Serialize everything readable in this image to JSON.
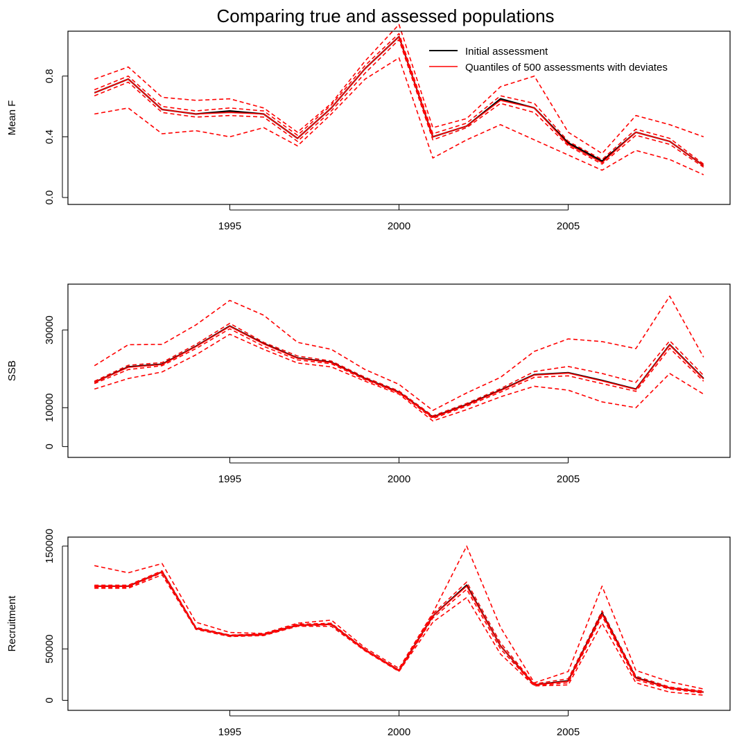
{
  "title": "Comparing true and assessed populations",
  "colors": {
    "assessment": "#000000",
    "quantiles": "#ff0000"
  },
  "legend": {
    "position": "top-right",
    "entries": [
      "Initial assessment",
      "Quantiles of 500 assessments with deviates"
    ]
  },
  "chart_data": [
    {
      "type": "line",
      "ylabel": "Mean F",
      "xlim": [
        1991,
        2009
      ],
      "ylim": [
        0,
        1.05
      ],
      "xticks": [
        "1995",
        "2000",
        "2005"
      ],
      "yticks": [
        "0.0",
        "0.4",
        "0.8"
      ],
      "x": [
        1991,
        1992,
        1993,
        1994,
        1995,
        1996,
        1997,
        1998,
        1999,
        2000,
        2001,
        2002,
        2003,
        2004,
        2005,
        2006,
        2007,
        2008,
        2009
      ],
      "series": [
        {
          "name": "Initial assessment",
          "style": "solid",
          "color": "#000000",
          "values": [
            0.69,
            0.78,
            0.58,
            0.55,
            0.57,
            0.55,
            0.39,
            0.59,
            0.85,
            1.06,
            0.4,
            0.47,
            0.65,
            0.59,
            0.36,
            0.24,
            0.43,
            0.37,
            0.21
          ]
        },
        {
          "style": "dashed",
          "color": "#ff0000",
          "values": [
            0.55,
            0.59,
            0.42,
            0.44,
            0.4,
            0.46,
            0.34,
            0.55,
            0.78,
            0.92,
            0.26,
            0.38,
            0.48,
            0.38,
            0.28,
            0.18,
            0.31,
            0.25,
            0.15
          ]
        },
        {
          "style": "dashed",
          "color": "#ff0000",
          "values": [
            0.67,
            0.76,
            0.56,
            0.53,
            0.54,
            0.53,
            0.37,
            0.57,
            0.82,
            1.04,
            0.38,
            0.46,
            0.62,
            0.56,
            0.34,
            0.22,
            0.41,
            0.35,
            0.2
          ]
        },
        {
          "style": "solid",
          "color": "#ff0000",
          "values": [
            0.69,
            0.78,
            0.58,
            0.55,
            0.56,
            0.55,
            0.39,
            0.59,
            0.85,
            1.06,
            0.4,
            0.47,
            0.64,
            0.59,
            0.35,
            0.23,
            0.43,
            0.37,
            0.21
          ]
        },
        {
          "style": "dashed",
          "color": "#ff0000",
          "values": [
            0.71,
            0.8,
            0.6,
            0.57,
            0.59,
            0.57,
            0.41,
            0.61,
            0.87,
            1.08,
            0.42,
            0.49,
            0.67,
            0.62,
            0.37,
            0.25,
            0.45,
            0.39,
            0.22
          ]
        },
        {
          "style": "dashed",
          "color": "#ff0000",
          "values": [
            0.78,
            0.86,
            0.66,
            0.64,
            0.65,
            0.59,
            0.43,
            0.62,
            0.9,
            1.14,
            0.46,
            0.52,
            0.73,
            0.8,
            0.43,
            0.29,
            0.54,
            0.48,
            0.4
          ]
        }
      ]
    },
    {
      "type": "line",
      "ylabel": "SSB",
      "xlim": [
        1991,
        2009
      ],
      "ylim": [
        -1000,
        40000
      ],
      "xticks": [
        "1995",
        "2000",
        "2005"
      ],
      "yticks": [
        "0",
        "10000",
        "30000"
      ],
      "x": [
        1991,
        1992,
        1993,
        1994,
        1995,
        1996,
        1997,
        1998,
        1999,
        2000,
        2001,
        2002,
        2003,
        2004,
        2005,
        2006,
        2007,
        2008,
        2009
      ],
      "series": [
        {
          "name": "Initial assessment",
          "style": "solid",
          "color": "#000000",
          "values": [
            16500,
            20500,
            21200,
            25800,
            31000,
            26500,
            22800,
            21700,
            17500,
            14000,
            7600,
            10800,
            14500,
            18500,
            19000,
            17000,
            14800,
            26200,
            17500
          ]
        },
        {
          "style": "dashed",
          "color": "#ff0000",
          "values": [
            14800,
            17500,
            19200,
            23600,
            28900,
            25000,
            21500,
            20500,
            16800,
            13500,
            6600,
            9500,
            12800,
            15500,
            14500,
            11500,
            10000,
            18800,
            13500
          ]
        },
        {
          "style": "dashed",
          "color": "#ff0000",
          "values": [
            16200,
            19800,
            20800,
            25200,
            30300,
            25800,
            22300,
            21300,
            17200,
            13800,
            7200,
            10400,
            14000,
            17800,
            18200,
            16200,
            14200,
            25300,
            16800
          ]
        },
        {
          "style": "solid",
          "color": "#ff0000",
          "values": [
            16500,
            20400,
            21100,
            25700,
            30900,
            26400,
            22700,
            21600,
            17400,
            13900,
            7500,
            10700,
            14400,
            18400,
            18900,
            16900,
            14700,
            26100,
            17400
          ]
        },
        {
          "style": "dashed",
          "color": "#ff0000",
          "values": [
            16800,
            20900,
            21600,
            26300,
            31700,
            26800,
            23300,
            22000,
            17800,
            14300,
            7900,
            11100,
            14900,
            19300,
            20600,
            18800,
            16500,
            27200,
            18300
          ]
        },
        {
          "style": "dashed",
          "color": "#ff0000",
          "values": [
            20800,
            26200,
            26300,
            31300,
            37600,
            33800,
            26800,
            25000,
            19800,
            16000,
            9300,
            13800,
            17800,
            24500,
            27700,
            27000,
            25200,
            38700,
            23000
          ]
        }
      ]
    },
    {
      "type": "line",
      "ylabel": "Recruitment",
      "xlim": [
        1991,
        2009
      ],
      "ylim": [
        -3000,
        152000
      ],
      "xticks": [
        "1995",
        "2000",
        "2005"
      ],
      "yticks": [
        "0",
        "50000",
        "150000"
      ],
      "x": [
        1991,
        1992,
        1993,
        1994,
        1995,
        1996,
        1997,
        1998,
        1999,
        2000,
        2001,
        2002,
        2003,
        2004,
        2005,
        2006,
        2007,
        2008,
        2009
      ],
      "series": [
        {
          "name": "Initial assessment",
          "style": "solid",
          "color": "#000000",
          "values": [
            111000,
            111000,
            125000,
            70000,
            63000,
            64000,
            73000,
            74000,
            49000,
            29000,
            82000,
            112000,
            53000,
            15000,
            19000,
            85000,
            22000,
            12000,
            8000
          ]
        },
        {
          "style": "dashed",
          "color": "#ff0000",
          "values": [
            109000,
            109000,
            122000,
            69000,
            62000,
            63000,
            72000,
            72000,
            48000,
            28000,
            76000,
            100000,
            45000,
            14000,
            15000,
            75000,
            17000,
            8000,
            5000
          ]
        },
        {
          "style": "dashed",
          "color": "#ff0000",
          "values": [
            110000,
            110000,
            124000,
            70000,
            62500,
            63500,
            72500,
            73500,
            48500,
            28500,
            80000,
            108000,
            50000,
            14500,
            17000,
            82000,
            20000,
            11000,
            7000
          ]
        },
        {
          "style": "solid",
          "color": "#ff0000",
          "values": [
            111000,
            111000,
            125000,
            70000,
            63000,
            64000,
            73000,
            74000,
            49000,
            29000,
            82000,
            111000,
            53000,
            15000,
            18500,
            84000,
            21500,
            12000,
            8000
          ]
        },
        {
          "style": "dashed",
          "color": "#ff0000",
          "values": [
            112000,
            112000,
            126000,
            71000,
            63500,
            64500,
            74000,
            75000,
            49500,
            29500,
            84000,
            115000,
            56000,
            16000,
            21000,
            87000,
            23500,
            13000,
            9000
          ]
        },
        {
          "style": "dashed",
          "color": "#ff0000",
          "values": [
            131000,
            124000,
            133000,
            76000,
            66000,
            65000,
            75000,
            78000,
            51000,
            31000,
            85000,
            150000,
            71000,
            17000,
            28000,
            111000,
            29000,
            18000,
            11000
          ]
        }
      ]
    }
  ]
}
